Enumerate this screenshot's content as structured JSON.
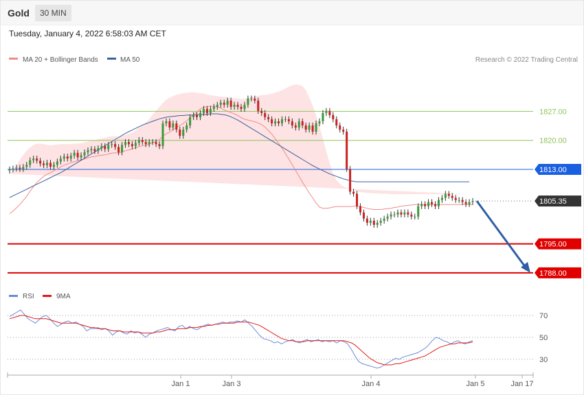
{
  "header": {
    "symbol": "Gold",
    "timeframe": "30 MIN"
  },
  "datetime": "Tuesday, January 4, 2022 6:58:03 AM CET",
  "legend": {
    "ma20": "MA 20 + Bollinger Bands",
    "ma50": "MA 50",
    "credit": "Research © 2022 Trading Central"
  },
  "rsi_legend": {
    "rsi": "RSI",
    "ma9": "9MA"
  },
  "colors": {
    "up": "#3a9a3a",
    "down": "#cc2222",
    "bb_fill": "#fde3e3",
    "ma20": "#f08a8a",
    "ma50": "#3e5f9e",
    "support": "#e00000",
    "resistance": "#8ec45a",
    "pivot": "#1a5fe0",
    "arrow": "#2f5ea5",
    "rsi": "#6a8ad8",
    "rsi_ma": "#e01818"
  },
  "chart_data": [
    {
      "type": "candlestick",
      "title": "Gold",
      "timeframe": "30 MIN",
      "ylim": [
        1786,
        1838
      ],
      "x_ticks": [
        "Jan 1",
        "Jan 3",
        "Jan 4",
        "Jan 5",
        "Jan 17"
      ],
      "levels": [
        {
          "name": "resistance2",
          "value": 1827.0,
          "label": "1827.00"
        },
        {
          "name": "resistance1",
          "value": 1820.0,
          "label": "1820.00"
        },
        {
          "name": "pivot",
          "value": 1813.0,
          "label": "1813.00"
        },
        {
          "name": "last",
          "value": 1805.35,
          "label": "1805.35"
        },
        {
          "name": "support1",
          "value": 1795.0,
          "label": "1795.00"
        },
        {
          "name": "support2",
          "value": 1788.0,
          "label": "1788.00"
        }
      ],
      "projection": {
        "from": 1805.35,
        "to": 1788.0
      },
      "closes": [
        1813.0,
        1813.2,
        1813.4,
        1813.1,
        1813.6,
        1814.1,
        1815.2,
        1815.6,
        1815.1,
        1814.4,
        1814.0,
        1814.6,
        1813.6,
        1814.1,
        1814.9,
        1815.6,
        1816.1,
        1815.6,
        1816.3,
        1817.0,
        1815.9,
        1816.4,
        1817.1,
        1817.6,
        1817.9,
        1817.4,
        1818.1,
        1818.6,
        1817.9,
        1818.9,
        1819.1,
        1818.4,
        1817.1,
        1818.9,
        1819.6,
        1819.1,
        1818.6,
        1819.4,
        1820.1,
        1819.6,
        1819.1,
        1819.6,
        1819.6,
        1819.1,
        1818.6,
        1824.1,
        1824.6,
        1823.1,
        1824.1,
        1822.6,
        1821.1,
        1822.6,
        1823.6,
        1825.6,
        1826.1,
        1825.6,
        1826.6,
        1827.6,
        1826.6,
        1827.6,
        1828.1,
        1828.6,
        1829.1,
        1828.6,
        1829.6,
        1828.1,
        1828.6,
        1828.1,
        1827.6,
        1828.6,
        1830.1,
        1830.1,
        1829.6,
        1827.1,
        1826.6,
        1825.6,
        1825.1,
        1824.1,
        1824.6,
        1824.1,
        1825.1,
        1825.1,
        1824.6,
        1823.6,
        1823.1,
        1824.6,
        1823.6,
        1822.6,
        1823.6,
        1822.1,
        1824.1,
        1824.6,
        1826.6,
        1827.1,
        1826.1,
        1825.1,
        1823.6,
        1822.6,
        1822.1,
        1813.1,
        1807.6,
        1807.1,
        1804.1,
        1802.6,
        1801.1,
        1800.1,
        1800.6,
        1799.6,
        1800.1,
        1800.6,
        1801.1,
        1801.6,
        1802.1,
        1802.1,
        1802.6,
        1802.1,
        1802.6,
        1802.1,
        1801.6,
        1801.6,
        1804.1,
        1804.6,
        1804.1,
        1805.1,
        1804.6,
        1804.1,
        1805.6,
        1806.1,
        1807.1,
        1806.6,
        1806.1,
        1805.6,
        1805.6,
        1805.1,
        1804.6,
        1805.1,
        1805.35
      ],
      "ma20": [
        1802.3,
        1802.9,
        1803.7,
        1804.5,
        1805.5,
        1806.5,
        1807.7,
        1808.8,
        1809.8,
        1810.6,
        1811.3,
        1811.8,
        1812.2,
        1812.7,
        1813.1,
        1813.6,
        1814.0,
        1814.3,
        1814.6,
        1814.9,
        1815.1,
        1815.3,
        1815.5,
        1815.8,
        1816.0,
        1816.1,
        1816.3,
        1816.4,
        1816.5,
        1816.7,
        1816.9,
        1817.0,
        1816.9,
        1817.2,
        1817.5,
        1817.7,
        1817.9,
        1818.2,
        1818.5,
        1818.7,
        1818.8,
        1819.1,
        1819.4,
        1819.8,
        1820.2,
        1821.0,
        1821.6,
        1822.0,
        1822.6,
        1823.1,
        1823.6,
        1824.1,
        1824.7,
        1825.5,
        1826.2,
        1826.9,
        1827.6,
        1828.0,
        1828.1,
        1828.3,
        1828.2,
        1828.1,
        1827.8,
        1827.4,
        1827.0,
        1826.7,
        1826.4,
        1826.0,
        1825.5,
        1825.1,
        1824.9,
        1824.7,
        1824.5,
        1824.2,
        1823.8,
        1823.2,
        1822.4,
        1821.5,
        1820.4,
        1819.3,
        1818.1,
        1816.8,
        1815.5,
        1814.1,
        1812.7,
        1811.3,
        1809.9,
        1808.6,
        1807.3,
        1806.1,
        1804.9,
        1803.9,
        1803.6,
        1803.6,
        1803.7,
        1803.9,
        1804.0,
        1804.0,
        1804.0,
        1804.0,
        1804.0,
        1804.1,
        1804.1,
        1804.0,
        1803.8,
        1803.6,
        1803.4,
        1803.3,
        1803.3,
        1803.3,
        1803.4,
        1803.5,
        1803.6,
        1803.8,
        1803.9,
        1804.1,
        1804.2,
        1804.3,
        1804.4,
        1804.5,
        1804.5,
        1804.5,
        1804.5,
        1804.5,
        1804.5,
        1804.5,
        1804.5,
        1804.5,
        1804.5,
        1804.5,
        1804.5,
        1804.5,
        1804.5,
        1804.5,
        1804.5,
        1804.5,
        1804.5
      ],
      "bb_upper": [
        1811.9,
        1812.8,
        1814.0,
        1815.3,
        1816.5,
        1817.5,
        1818.3,
        1818.9,
        1819.2,
        1819.2,
        1819.1,
        1818.9,
        1818.8,
        1818.9,
        1819.0,
        1819.1,
        1819.1,
        1819.1,
        1819.1,
        1819.2,
        1819.2,
        1819.3,
        1819.5,
        1819.7,
        1819.9,
        1820.0,
        1820.3,
        1820.5,
        1820.6,
        1820.9,
        1821.0,
        1821.0,
        1821.0,
        1821.1,
        1821.4,
        1821.6,
        1821.8,
        1822.4,
        1823.1,
        1823.6,
        1824.2,
        1825.1,
        1826.2,
        1827.2,
        1828.1,
        1829.0,
        1829.8,
        1830.3,
        1830.7,
        1831.0,
        1831.2,
        1831.4,
        1831.5,
        1831.6,
        1831.6,
        1831.5,
        1831.4,
        1831.3,
        1831.1,
        1830.9,
        1830.8,
        1830.7,
        1830.6,
        1830.5,
        1830.4,
        1830.3,
        1830.2,
        1830.1,
        1830.0,
        1830.0,
        1830.2,
        1830.5,
        1830.6,
        1830.8,
        1830.9,
        1831.0,
        1831.1,
        1831.3,
        1831.5,
        1831.8,
        1832.1,
        1832.5,
        1833.0,
        1833.3,
        1833.5,
        1833.4,
        1833.1,
        1832.1,
        1830.4,
        1828.4,
        1826.1,
        1823.4,
        1820.4,
        1817.4,
        1814.4,
        1811.9,
        1810.4,
        1809.5,
        1808.9,
        1808.5,
        1808.2,
        1807.9,
        1807.6,
        1807.5,
        1807.4,
        1807.3,
        1807.3,
        1807.2,
        1807.2,
        1807.1,
        1807.1,
        1807.1,
        1807.0,
        1807.0,
        1807.0,
        1807.0,
        1807.0,
        1807.0,
        1807.0,
        1807.0,
        1807.0,
        1807.0,
        1807.0,
        1807.0,
        1807.0,
        1807.0,
        1807.0,
        1807.0,
        1807.0,
        1807.0,
        1807.0,
        1807.0,
        1807.0,
        1807.0,
        1807.0,
        1807.0
      ],
      "bb_lower": [
        1794.1,
        1794.6,
        1795.4,
        1796.6,
        1798.1,
        1799.5,
        1800.8,
        1801.9,
        1803.1,
        1804.1,
        1805.1,
        1806.2,
        1807.1,
        1807.9,
        1808.6,
        1809.1,
        1809.6,
        1810.0,
        1810.4,
        1810.7,
        1811.1,
        1811.5,
        1811.8,
        1812.1,
        1812.3,
        1812.3,
        1812.4,
        1812.4,
        1812.3,
        1812.3,
        1812.2,
        1812.1,
        1811.9,
        1812.2,
        1812.6,
        1812.9,
        1813.1,
        1813.3,
        1813.4,
        1813.6,
        1813.8,
        1814.0,
        1814.3,
        1814.6,
        1814.8,
        1815.1,
        1815.3,
        1815.6,
        1816.1,
        1816.6,
        1817.1,
        1817.6,
        1818.1,
        1818.7,
        1819.3,
        1819.9,
        1820.6,
        1821.3,
        1821.9,
        1822.5,
        1822.9,
        1823.1,
        1823.3,
        1823.4,
        1823.5,
        1823.6,
        1823.6,
        1823.6,
        1823.6,
        1823.5,
        1823.5,
        1823.5,
        1823.4,
        1823.3,
        1823.1,
        1822.9,
        1822.5,
        1822.1,
        1821.6,
        1820.9,
        1819.7,
        1818.2,
        1816.2,
        1813.6,
        1810.6,
        1807.4,
        1804.1,
        1801.1,
        1798.4,
        1796.2,
        1794.6,
        1793.7,
        1793.4,
        1793.6,
        1794.1,
        1795.1,
        1796.6,
        1798.3,
        1799.7,
        1800.5,
        1801.0,
        1801.4,
        1801.7,
        1801.9,
        1802.0,
        1802.1,
        1802.1,
        1802.2,
        1802.2,
        1802.2,
        1802.2,
        1802.2,
        1802.2,
        1802.2,
        1802.2,
        1802.2,
        1802.2,
        1802.2,
        1802.2,
        1802.2,
        1802.2,
        1802.2,
        1802.2,
        1802.2,
        1802.2,
        1802.2,
        1802.2,
        1802.2,
        1802.2,
        1802.2,
        1802.2,
        1802.2,
        1802.2,
        1802.2,
        1802.2,
        1802.2
      ],
      "ma50": [
        1806.2,
        1806.6,
        1807.0,
        1807.4,
        1807.8,
        1808.2,
        1808.6,
        1809.0,
        1809.4,
        1809.8,
        1810.2,
        1810.6,
        1811.0,
        1811.4,
        1811.8,
        1812.2,
        1812.7,
        1813.2,
        1813.7,
        1814.2,
        1814.7,
        1815.2,
        1815.7,
        1816.2,
        1816.7,
        1817.2,
        1817.7,
        1818.2,
        1818.7,
        1819.2,
        1819.7,
        1820.2,
        1820.7,
        1821.2,
        1821.7,
        1822.1,
        1822.5,
        1822.9,
        1823.3,
        1823.7,
        1824.0,
        1824.3,
        1824.6,
        1824.9,
        1825.2,
        1825.4,
        1825.6,
        1825.7,
        1825.8,
        1825.9,
        1826.0,
        1826.0,
        1826.1,
        1826.1,
        1826.1,
        1826.2,
        1826.2,
        1826.3,
        1826.3,
        1826.4,
        1826.4,
        1826.4,
        1826.3,
        1826.2,
        1826.0,
        1825.7,
        1825.3,
        1824.9,
        1824.4,
        1823.9,
        1823.4,
        1822.9,
        1822.4,
        1821.9,
        1821.4,
        1820.9,
        1820.4,
        1819.9,
        1819.4,
        1818.9,
        1818.4,
        1817.9,
        1817.4,
        1816.9,
        1816.4,
        1815.9,
        1815.4,
        1814.9,
        1814.4,
        1813.9,
        1813.5,
        1813.1,
        1812.7,
        1812.3,
        1811.9,
        1811.6,
        1811.3,
        1811.0,
        1810.7,
        1810.5,
        1810.3,
        1810.1,
        1810.0,
        1810.0,
        1810.0,
        1810.0,
        1810.0,
        1810.0,
        1810.0,
        1810.0,
        1810.0,
        1810.0,
        1810.0,
        1810.0,
        1810.0,
        1810.0,
        1810.0,
        1810.0,
        1810.0,
        1810.0,
        1810.0,
        1810.0,
        1810.0,
        1810.0,
        1810.0,
        1810.0,
        1810.0,
        1810.0,
        1810.0,
        1810.0,
        1810.0,
        1810.0,
        1810.0,
        1810.0,
        1810.0,
        1810.0
      ]
    },
    {
      "type": "line",
      "title": "RSI",
      "ylim": [
        20,
        80
      ],
      "y_ticks": [
        30,
        50,
        70
      ],
      "series": [
        {
          "name": "RSI",
          "values": [
            69,
            71,
            73,
            75,
            71,
            67,
            65,
            63,
            66,
            69,
            70,
            67,
            63,
            60,
            62,
            64,
            65,
            63,
            64,
            62,
            60,
            56,
            58,
            58,
            59,
            57,
            58,
            56,
            52,
            55,
            56,
            54,
            53,
            56,
            54,
            55,
            53,
            50,
            53,
            54,
            56,
            57,
            58,
            59,
            57,
            56,
            60,
            61,
            58,
            60,
            58,
            57,
            59,
            61,
            62,
            61,
            62,
            63,
            64,
            63,
            64,
            64,
            65,
            64,
            66,
            63,
            60,
            56,
            52,
            49,
            48,
            47,
            45,
            46,
            44,
            46,
            47,
            48,
            46,
            45,
            47,
            48,
            46,
            47,
            48,
            46,
            47,
            46,
            47,
            45,
            47,
            46,
            44,
            39,
            33,
            28,
            26,
            25,
            24,
            23,
            22,
            23,
            25,
            27,
            29,
            31,
            30,
            32,
            33,
            34,
            35,
            36,
            38,
            40,
            43,
            47,
            50,
            49,
            47,
            46,
            44,
            46,
            47,
            45,
            44,
            46,
            47
          ]
        },
        {
          "name": "9MA",
          "values": [
            67,
            68,
            69,
            70,
            70,
            69,
            68,
            67,
            67,
            67,
            67,
            66,
            65,
            64,
            63,
            63,
            63,
            63,
            63,
            62,
            61,
            60,
            59,
            59,
            58,
            58,
            58,
            57,
            56,
            56,
            56,
            55,
            55,
            55,
            55,
            55,
            54,
            54,
            54,
            54,
            55,
            55,
            56,
            57,
            57,
            57,
            58,
            58,
            58,
            59,
            59,
            59,
            60,
            60,
            61,
            61,
            62,
            62,
            63,
            63,
            63,
            63,
            64,
            64,
            64,
            64,
            63,
            62,
            61,
            59,
            57,
            55,
            53,
            51,
            49,
            48,
            47,
            47,
            46,
            46,
            46,
            47,
            47,
            47,
            47,
            47,
            47,
            47,
            47,
            47,
            47,
            47,
            46,
            45,
            43,
            40,
            37,
            34,
            31,
            29,
            27,
            26,
            25,
            25,
            25,
            26,
            26,
            27,
            28,
            29,
            30,
            31,
            32,
            33,
            35,
            37,
            39,
            41,
            42,
            43,
            44,
            44,
            45,
            45,
            45,
            45,
            46
          ]
        }
      ]
    }
  ]
}
